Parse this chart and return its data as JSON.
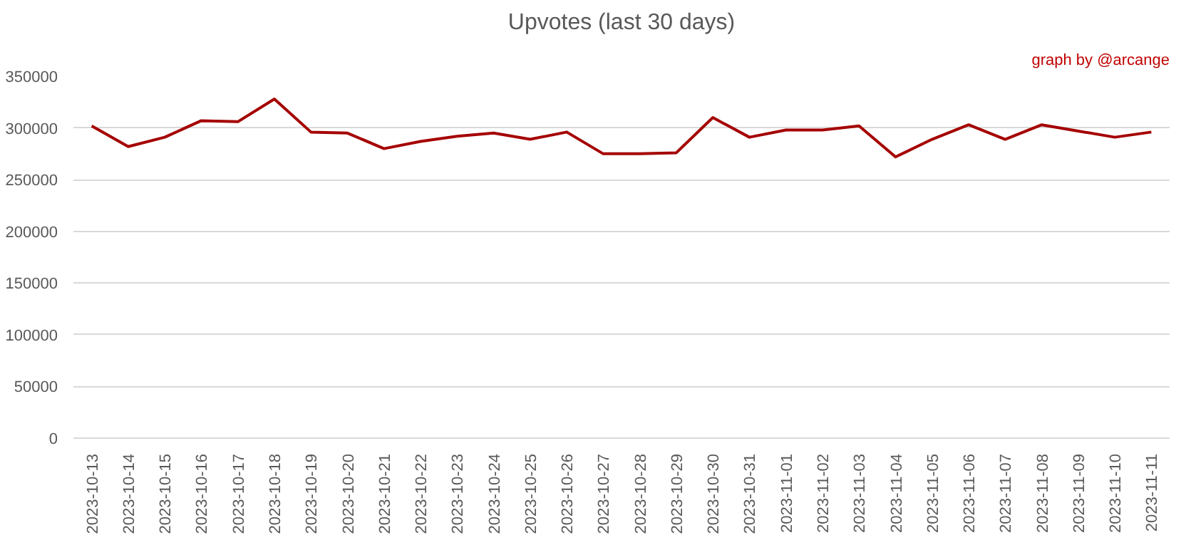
{
  "chart_data": {
    "type": "line",
    "title": "Upvotes (last 30 days)",
    "annotations": [
      "graph by @arcange"
    ],
    "categories": [
      "2023-10-13",
      "2023-10-14",
      "2023-10-15",
      "2023-10-16",
      "2023-10-17",
      "2023-10-18",
      "2023-10-19",
      "2023-10-20",
      "2023-10-21",
      "2023-10-22",
      "2023-10-23",
      "2023-10-24",
      "2023-10-25",
      "2023-10-26",
      "2023-10-27",
      "2023-10-28",
      "2023-10-29",
      "2023-10-30",
      "2023-10-31",
      "2023-11-01",
      "2023-11-02",
      "2023-11-03",
      "2023-11-04",
      "2023-11-05",
      "2023-11-06",
      "2023-11-07",
      "2023-11-08",
      "2023-11-09",
      "2023-11-10",
      "2023-11-11"
    ],
    "series": [
      {
        "color": "#a50000",
        "values": [
          302000,
          282000,
          291000,
          307000,
          306000,
          328000,
          296000,
          295000,
          280000,
          287000,
          292000,
          295000,
          289000,
          296000,
          275000,
          275000,
          276000,
          310000,
          291000,
          298000,
          298000,
          302000,
          272000,
          289000,
          303000,
          289000,
          303000,
          297000,
          291000,
          296000
        ]
      }
    ],
    "ylim": [
      0,
      350000
    ],
    "yticks": [
      0,
      50000,
      100000,
      150000,
      200000,
      250000,
      300000,
      350000
    ],
    "grid": "y",
    "marker": "none",
    "line_style": "solid"
  }
}
